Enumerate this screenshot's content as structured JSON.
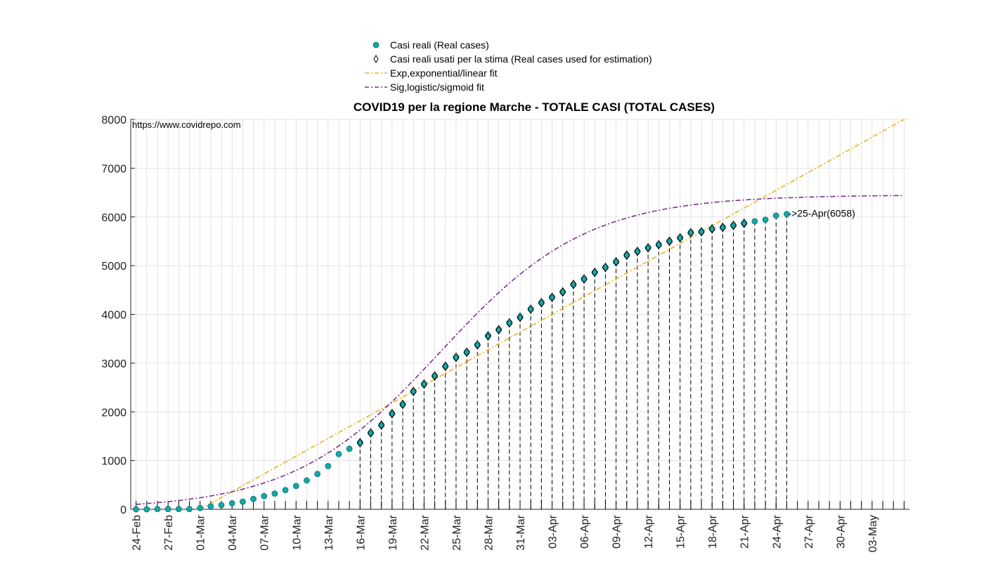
{
  "chart_data": {
    "type": "scatter",
    "title": "COVID19 per la regione Marche - TOTALE CASI (TOTAL CASES)",
    "watermark": "https://www.covidrepo.com",
    "ylim": [
      0,
      8000
    ],
    "yticks": [
      0,
      1000,
      2000,
      3000,
      4000,
      5000,
      6000,
      7000,
      8000
    ],
    "xlim_days": [
      -0.5,
      72.5
    ],
    "x_start_date": "24-Feb",
    "x_tick_labels": [
      "24-Feb",
      "27-Feb",
      "01-Mar",
      "04-Mar",
      "07-Mar",
      "10-Mar",
      "13-Mar",
      "16-Mar",
      "19-Mar",
      "22-Mar",
      "25-Mar",
      "28-Mar",
      "31-Mar",
      "03-Apr",
      "06-Apr",
      "09-Apr",
      "12-Apr",
      "15-Apr",
      "18-Apr",
      "21-Apr",
      "24-Apr",
      "27-Apr",
      "30-Apr",
      "03-May"
    ],
    "x_tick_every_days": 3,
    "grid": true,
    "real_cases": [
      0,
      0,
      6,
      6,
      6,
      6,
      25,
      61,
      84,
      124,
      157,
      212,
      271,
      323,
      394,
      479,
      592,
      725,
      886,
      1133,
      1242,
      1367,
      1568,
      1727,
      1963,
      2153,
      2419,
      2569,
      2736,
      2934,
      3117,
      3223,
      3373,
      3558,
      3684,
      3825,
      3941,
      4106,
      4239,
      4349,
      4460,
      4614,
      4726,
      4862,
      4964,
      5078,
      5215,
      5291,
      5366,
      5429,
      5500,
      5569,
      5676,
      5695,
      5754,
      5785,
      5825,
      5869,
      5909,
      5942,
      6027,
      6058
    ],
    "estimation_start_day": 25,
    "estimation_end_day": 61,
    "exp_fit": {
      "start_day": 6,
      "end_day": 72,
      "y_start": 0,
      "y_end": 8000
    },
    "sig_fit": {
      "K": 6450,
      "r": 0.1449,
      "t0": 28.5,
      "end_day": 72
    },
    "fit_line_start_day": 0,
    "annotation": "->25-Apr(6058)",
    "annotation_day": 61,
    "annotation_value": 6058,
    "dashed_stem_end_day": 72,
    "colors": {
      "real": "#17a6a6",
      "exp": "#edb120",
      "sig": "#7e2f8e",
      "grid": "#dcdcdc",
      "axis": "#262626"
    }
  },
  "legend": {
    "items": [
      {
        "label": "Casi reali (Real cases)",
        "icon": "dot-marker"
      },
      {
        "label": "Casi reali usati per la stima (Real cases used for estimation)",
        "icon": "diamond-marker"
      },
      {
        "label": "Exp,exponential/linear fit",
        "icon": "dashdot-line"
      },
      {
        "label": "Sig,logistic/sigmoid fit",
        "icon": "dashdot-line"
      }
    ]
  }
}
